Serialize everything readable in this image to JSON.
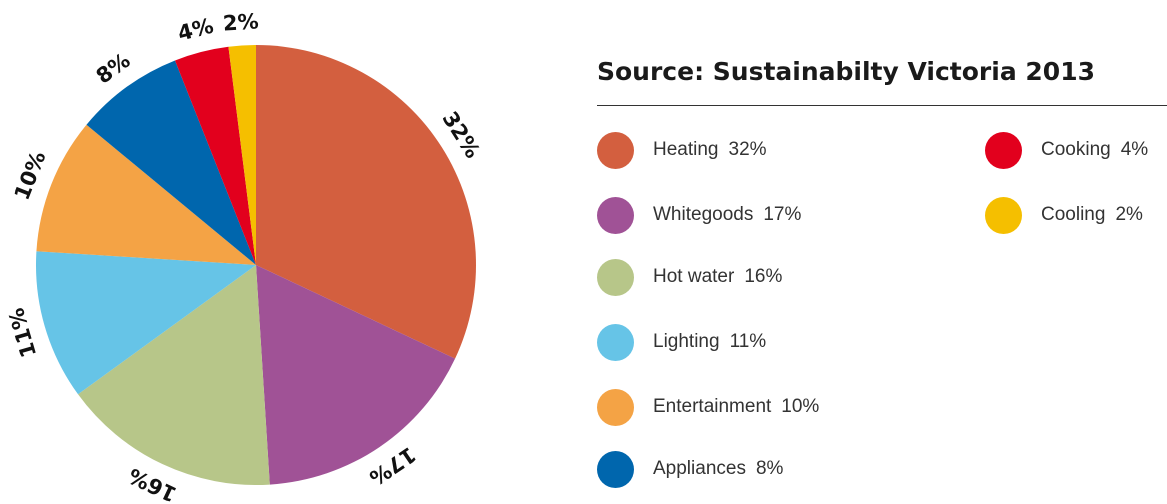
{
  "chart_data": {
    "type": "pie",
    "title": "",
    "source_label": "Source: Sustainabilty Victoria 2013",
    "start": "12 o'clock",
    "direction": "clockwise",
    "slices": [
      {
        "label": "Heating",
        "value": 32,
        "value_label": "32%",
        "color": "#D35F3F"
      },
      {
        "label": "Whitegoods",
        "value": 17,
        "value_label": "17%",
        "color": "#A05296"
      },
      {
        "label": "Hot water",
        "value": 16,
        "value_label": "16%",
        "color": "#B7C689"
      },
      {
        "label": "Lighting",
        "value": 11,
        "value_label": "11%",
        "color": "#66C4E7"
      },
      {
        "label": "Entertainment",
        "value": 10,
        "value_label": "10%",
        "color": "#F4A345"
      },
      {
        "label": "Appliances",
        "value": 8,
        "value_label": "8%",
        "color": "#0066AD"
      },
      {
        "label": "Cooking",
        "value": 4,
        "value_label": "4%",
        "color": "#E2001D"
      },
      {
        "label": "Cooling",
        "value": 2,
        "value_label": "2%",
        "color": "#F5BF00"
      }
    ]
  }
}
